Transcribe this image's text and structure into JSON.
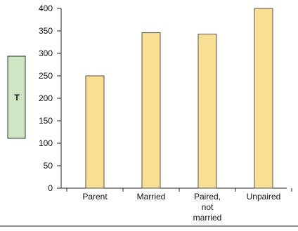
{
  "chart_data": {
    "type": "bar",
    "categories": [
      "Parent",
      "Married",
      "Paired, not married",
      "Unpaired"
    ],
    "category_label_lines": [
      [
        "Parent"
      ],
      [
        "Married"
      ],
      [
        "Paired,",
        "not",
        "married"
      ],
      [
        "Unpaired"
      ]
    ],
    "values": [
      250,
      346,
      343,
      400
    ],
    "ylim": [
      0,
      400
    ],
    "yticks": [
      0,
      50,
      100,
      150,
      200,
      250,
      300,
      350,
      400
    ],
    "ylabel": "T",
    "grid": false,
    "colors": {
      "bar_fill": "#f8df94",
      "bar_stroke": "#555555",
      "ylabel_box_fill": "#cfe6c3",
      "ylabel_box_stroke": "#333333",
      "axis": "#222222"
    }
  }
}
